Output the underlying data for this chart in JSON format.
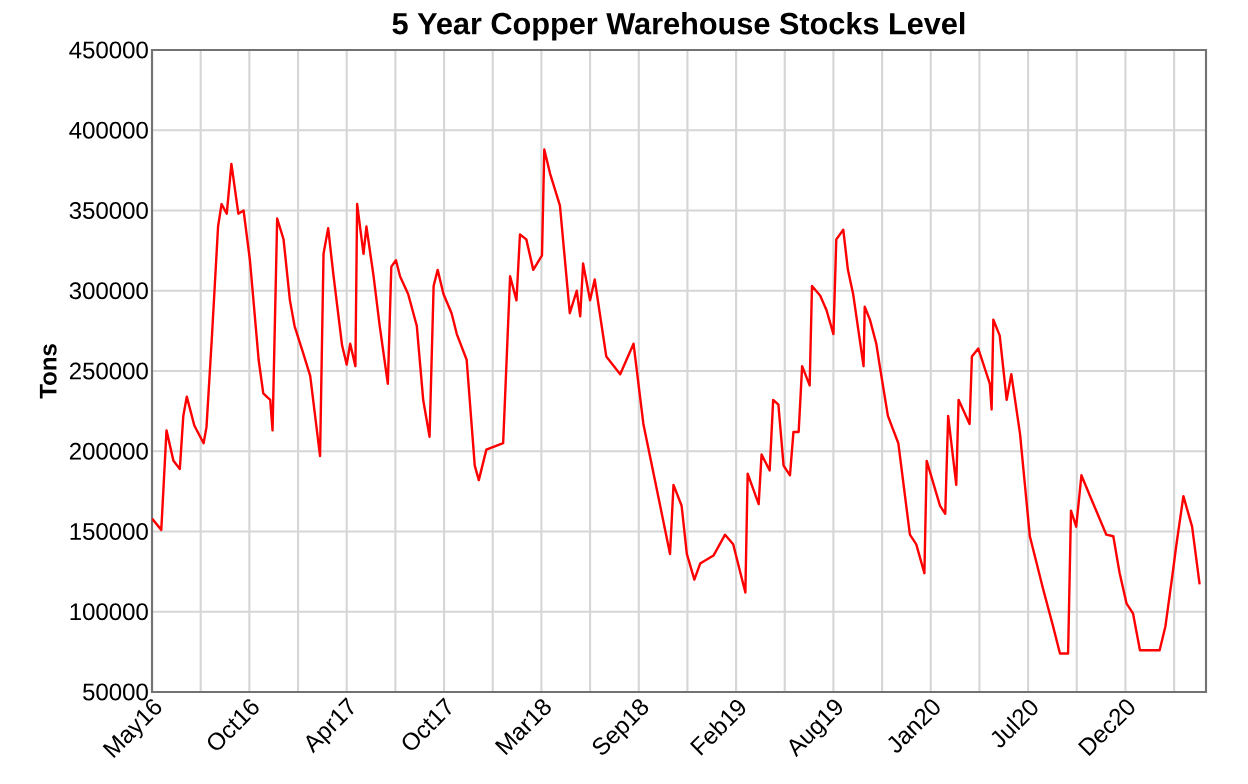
{
  "chart_data": {
    "type": "line",
    "title": "5 Year Copper Warehouse Stocks Level",
    "ylabel": "Tons",
    "xlim": [
      "2016-05-16",
      "2021-05-09"
    ],
    "ylim": [
      50000,
      450000
    ],
    "yticks": [
      50000,
      100000,
      150000,
      200000,
      250000,
      300000,
      350000,
      400000,
      450000
    ],
    "xticks": [
      {
        "value": "2016-05-16",
        "label": "May16"
      },
      {
        "value": "2016-08-08",
        "label": null
      },
      {
        "value": "2016-10-31",
        "label": "Oct16"
      },
      {
        "value": "2017-01-23",
        "label": null
      },
      {
        "value": "2017-04-17",
        "label": "Apr17"
      },
      {
        "value": "2017-07-10",
        "label": null
      },
      {
        "value": "2017-10-02",
        "label": "Oct17"
      },
      {
        "value": "2017-12-25",
        "label": null
      },
      {
        "value": "2018-03-19",
        "label": "Mar18"
      },
      {
        "value": "2018-06-11",
        "label": null
      },
      {
        "value": "2018-09-03",
        "label": "Sep18"
      },
      {
        "value": "2018-11-26",
        "label": null
      },
      {
        "value": "2019-02-18",
        "label": "Feb19"
      },
      {
        "value": "2019-05-13",
        "label": null
      },
      {
        "value": "2019-08-05",
        "label": "Aug19"
      },
      {
        "value": "2019-10-28",
        "label": null
      },
      {
        "value": "2020-01-20",
        "label": "Jan20"
      },
      {
        "value": "2020-04-13",
        "label": null
      },
      {
        "value": "2020-07-06",
        "label": "Jul20"
      },
      {
        "value": "2020-09-28",
        "label": null
      },
      {
        "value": "2020-12-21",
        "label": "Dec20"
      },
      {
        "value": "2021-03-15",
        "label": null
      }
    ],
    "grid": true,
    "color": "#ff0000",
    "x": [
      "2016-05-16",
      "2016-06-01",
      "2016-06-10",
      "2016-06-22",
      "2016-07-03",
      "2016-07-09",
      "2016-07-15",
      "2016-07-28",
      "2016-08-13",
      "2016-08-18",
      "2016-08-27",
      "2016-09-07",
      "2016-09-13",
      "2016-09-22",
      "2016-09-30",
      "2016-10-12",
      "2016-10-21",
      "2016-11-01",
      "2016-11-16",
      "2016-11-24",
      "2016-12-06",
      "2016-12-10",
      "2016-12-18",
      "2016-12-29",
      "2017-01-09",
      "2017-01-17",
      "2017-02-01",
      "2017-02-13",
      "2017-03-02",
      "2017-03-08",
      "2017-03-16",
      "2017-03-25",
      "2017-04-09",
      "2017-04-17",
      "2017-04-23",
      "2017-05-02",
      "2017-05-05",
      "2017-05-16",
      "2017-05-21",
      "2017-06-02",
      "2017-06-13",
      "2017-06-27",
      "2017-07-03",
      "2017-07-11",
      "2017-07-18",
      "2017-08-01",
      "2017-08-16",
      "2017-08-27",
      "2017-09-07",
      "2017-09-14",
      "2017-09-21",
      "2017-10-01",
      "2017-10-15",
      "2017-10-24",
      "2017-11-10",
      "2017-11-24",
      "2017-12-01",
      "2017-12-14",
      "2018-01-12",
      "2018-01-24",
      "2018-02-04",
      "2018-02-10",
      "2018-02-21",
      "2018-03-05",
      "2018-03-20",
      "2018-03-24",
      "2018-04-03",
      "2018-04-20",
      "2018-05-07",
      "2018-05-19",
      "2018-05-25",
      "2018-05-30",
      "2018-06-11",
      "2018-06-19",
      "2018-07-09",
      "2018-08-02",
      "2018-08-25",
      "2018-09-11",
      "2018-10-10",
      "2018-10-27",
      "2018-11-02",
      "2018-11-16",
      "2018-11-25",
      "2018-12-08",
      "2018-12-18",
      "2019-01-10",
      "2019-01-30",
      "2019-02-13",
      "2019-03-06",
      "2019-03-10",
      "2019-03-29",
      "2019-04-03",
      "2019-04-17",
      "2019-04-23",
      "2019-05-02",
      "2019-05-11",
      "2019-05-22",
      "2019-05-28",
      "2019-06-06",
      "2019-06-12",
      "2019-06-25",
      "2019-06-29",
      "2019-07-13",
      "2019-07-24",
      "2019-08-05",
      "2019-08-10",
      "2019-08-22",
      "2019-08-30",
      "2019-09-08",
      "2019-09-26",
      "2019-09-28",
      "2019-10-07",
      "2019-10-18",
      "2019-10-24",
      "2019-11-07",
      "2019-11-25",
      "2019-12-15",
      "2019-12-26",
      "2020-01-09",
      "2020-01-13",
      "2020-02-05",
      "2020-02-14",
      "2020-02-19",
      "2020-03-04",
      "2020-03-08",
      "2020-03-27",
      "2020-03-31",
      "2020-04-11",
      "2020-05-01",
      "2020-05-04",
      "2020-05-07",
      "2020-05-18",
      "2020-05-30",
      "2020-06-07",
      "2020-06-22",
      "2020-07-09",
      "2020-08-01",
      "2020-08-18",
      "2020-08-30",
      "2020-09-13",
      "2020-09-18",
      "2020-09-27",
      "2020-10-06",
      "2020-10-21",
      "2020-11-18",
      "2020-11-30",
      "2020-12-11",
      "2020-12-23",
      "2021-01-03",
      "2021-01-15",
      "2021-02-18",
      "2021-02-28",
      "2021-03-11",
      "2021-03-19",
      "2021-03-31",
      "2021-04-15",
      "2021-04-28"
    ],
    "values": [
      158000,
      151000,
      213000,
      194000,
      189000,
      222000,
      234000,
      216000,
      205000,
      215000,
      269000,
      340000,
      354000,
      348000,
      379000,
      348000,
      350000,
      319000,
      257000,
      236000,
      232000,
      213000,
      345000,
      332000,
      294000,
      278000,
      261000,
      247000,
      197000,
      323000,
      339000,
      310000,
      266000,
      254000,
      267000,
      253000,
      354000,
      323000,
      340000,
      310000,
      278000,
      242000,
      315000,
      319000,
      309000,
      298000,
      278000,
      232000,
      209000,
      303000,
      313000,
      298000,
      286000,
      273000,
      257000,
      191000,
      182000,
      201000,
      205000,
      309000,
      294000,
      335000,
      332000,
      313000,
      322000,
      388000,
      373000,
      353000,
      286000,
      300000,
      284000,
      317000,
      294000,
      307000,
      259000,
      248000,
      267000,
      217000,
      166000,
      136000,
      179000,
      166000,
      136000,
      120000,
      130000,
      135000,
      148000,
      142000,
      112000,
      186000,
      167000,
      198000,
      188000,
      232000,
      229000,
      191000,
      185000,
      212000,
      212000,
      253000,
      241000,
      303000,
      297000,
      288000,
      273000,
      332000,
      338000,
      313000,
      298000,
      253000,
      290000,
      282000,
      267000,
      253000,
      222000,
      205000,
      148000,
      142000,
      124000,
      194000,
      166000,
      161000,
      222000,
      179000,
      232000,
      217000,
      259000,
      264000,
      242000,
      226000,
      282000,
      272000,
      232000,
      248000,
      211000,
      147000,
      114000,
      91000,
      74000,
      74000,
      163000,
      153000,
      185000,
      172000,
      148000,
      147000,
      124000,
      105000,
      99000,
      76000,
      76000,
      91000,
      120000,
      142000,
      172000,
      153000,
      117000
    ]
  }
}
